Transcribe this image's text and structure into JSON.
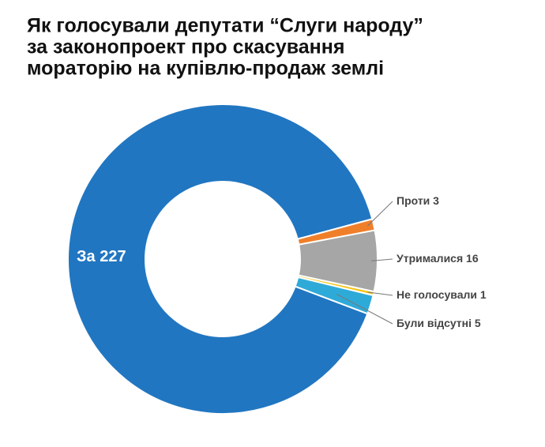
{
  "chart_data": {
    "type": "pie",
    "donut": true,
    "title": [
      "Як голосували депутати “Слуги народу”",
      "за законопроект про скасування",
      "мораторію на купівлю-продаж землі"
    ],
    "categories": [
      "За",
      "Проти",
      "Утрималися",
      "Не голосували",
      "Були відсутні"
    ],
    "values": [
      227,
      3,
      16,
      1,
      5
    ],
    "colors": [
      "#2176c1",
      "#f07f2a",
      "#a6a6a6",
      "#f5c518",
      "#2eaad8"
    ]
  }
}
